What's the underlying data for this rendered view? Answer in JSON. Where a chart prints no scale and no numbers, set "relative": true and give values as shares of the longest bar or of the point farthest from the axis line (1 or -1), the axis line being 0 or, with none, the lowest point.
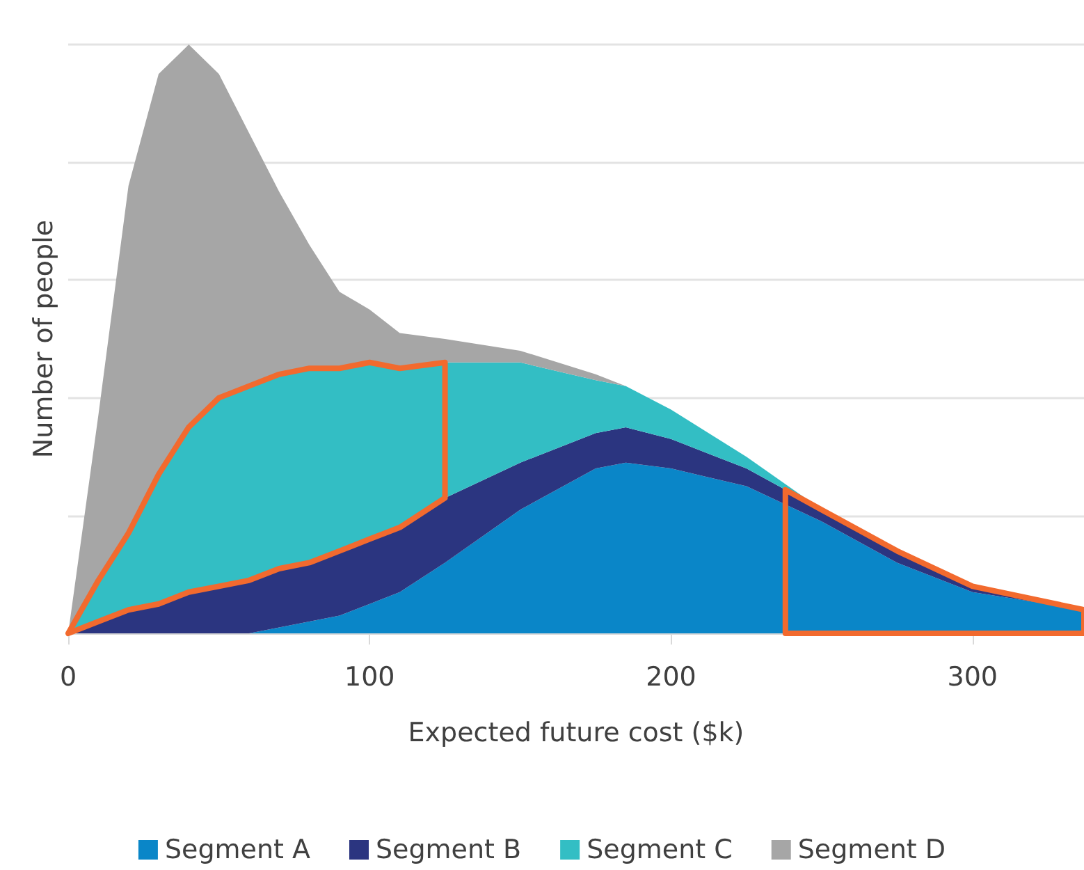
{
  "chart_data": {
    "type": "area",
    "stacked": true,
    "relative": true,
    "xlabel": "Expected future cost ($k)",
    "ylabel": "Number of people",
    "x": [
      0,
      10,
      20,
      30,
      40,
      50,
      60,
      70,
      80,
      90,
      100,
      110,
      125,
      150,
      175,
      185,
      200,
      225,
      250,
      275,
      300,
      337
    ],
    "xlim": [
      0,
      337
    ],
    "xticks": [
      0,
      100,
      200,
      300
    ],
    "grid": "y",
    "legend": "bottom",
    "series": [
      {
        "name": "Segment A",
        "color": "#0a86c8",
        "values": [
          0,
          0,
          0,
          0,
          0,
          0,
          0,
          0.01,
          0.02,
          0.03,
          0.05,
          0.07,
          0.12,
          0.21,
          0.28,
          0.29,
          0.28,
          0.25,
          0.19,
          0.12,
          0.07,
          0.04
        ]
      },
      {
        "name": "Segment B",
        "color": "#2b3580",
        "values": [
          0,
          0.02,
          0.04,
          0.05,
          0.07,
          0.08,
          0.09,
          0.1,
          0.1,
          0.11,
          0.11,
          0.11,
          0.11,
          0.08,
          0.06,
          0.06,
          0.05,
          0.03,
          0.02,
          0.02,
          0.01,
          0
        ]
      },
      {
        "name": "Segment C",
        "color": "#33bec4",
        "values": [
          0,
          0.07,
          0.13,
          0.22,
          0.28,
          0.32,
          0.33,
          0.33,
          0.33,
          0.31,
          0.3,
          0.27,
          0.23,
          0.17,
          0.09,
          0.07,
          0.05,
          0.02,
          0,
          0,
          0,
          0
        ]
      },
      {
        "name": "Segment D",
        "color": "#a6a6a6",
        "values": [
          0,
          0.28,
          0.59,
          0.68,
          0.65,
          0.55,
          0.43,
          0.31,
          0.21,
          0.13,
          0.09,
          0.06,
          0.04,
          0.02,
          0.01,
          0,
          0,
          0,
          0,
          0,
          0,
          0
        ]
      }
    ]
  }
}
